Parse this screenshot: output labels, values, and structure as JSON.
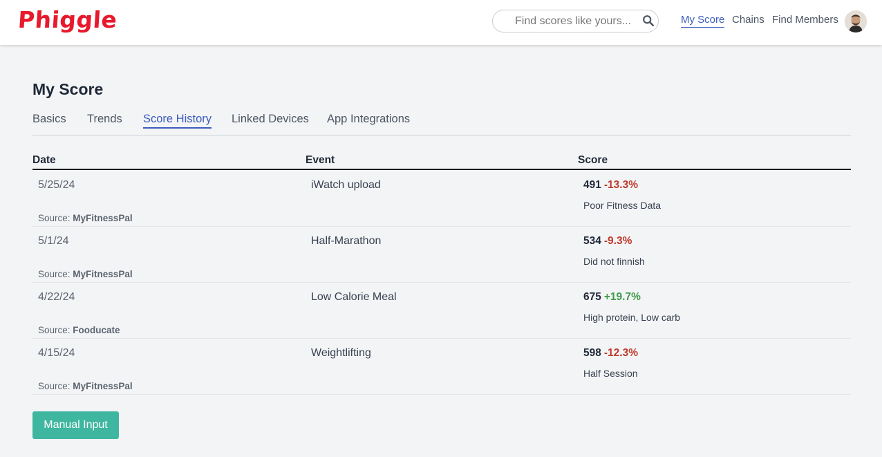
{
  "app": {
    "logo_text": "Phiggle",
    "brand_color": "#e8192c"
  },
  "search": {
    "placeholder": "Find scores like yours..."
  },
  "nav": {
    "items": [
      {
        "label": "My Score",
        "active": true
      },
      {
        "label": "Chains",
        "active": false
      },
      {
        "label": "Find Members",
        "active": false
      }
    ]
  },
  "page": {
    "title": "My Score"
  },
  "tabs": [
    {
      "label": "Basics",
      "active": false
    },
    {
      "label": "Trends",
      "active": false
    },
    {
      "label": "Score History",
      "active": true
    },
    {
      "label": "Linked Devices",
      "active": false
    },
    {
      "label": "App Integrations",
      "active": false
    }
  ],
  "table": {
    "headers": {
      "date": "Date",
      "event": "Event",
      "score": "Score"
    },
    "source_label": "Source:",
    "rows": [
      {
        "date": "5/25/24",
        "event": "iWatch upload",
        "score": "491",
        "change": "-13.3%",
        "note": "Poor Fitness Data",
        "source": "MyFitnessPal"
      },
      {
        "date": "5/1/24",
        "event": "Half-Marathon",
        "score": "534",
        "change": "-9.3%",
        "note": "Did not finnish",
        "source": "MyFitnessPal"
      },
      {
        "date": "4/22/24",
        "event": "Low Calorie Meal",
        "score": "675",
        "change": "+19.7%",
        "note": "High protein, Low carb",
        "source": "Fooducate"
      },
      {
        "date": "4/15/24",
        "event": "Weightlifting",
        "score": "598",
        "change": "-12.3%",
        "note": "Half Session",
        "source": "MyFitnessPal"
      }
    ]
  },
  "actions": {
    "manual_input_label": "Manual Input"
  },
  "colors": {
    "accent": "#3b5bbd",
    "negative": "#c0392b",
    "positive": "#3f9a4a",
    "button": "#3fb6a0"
  }
}
